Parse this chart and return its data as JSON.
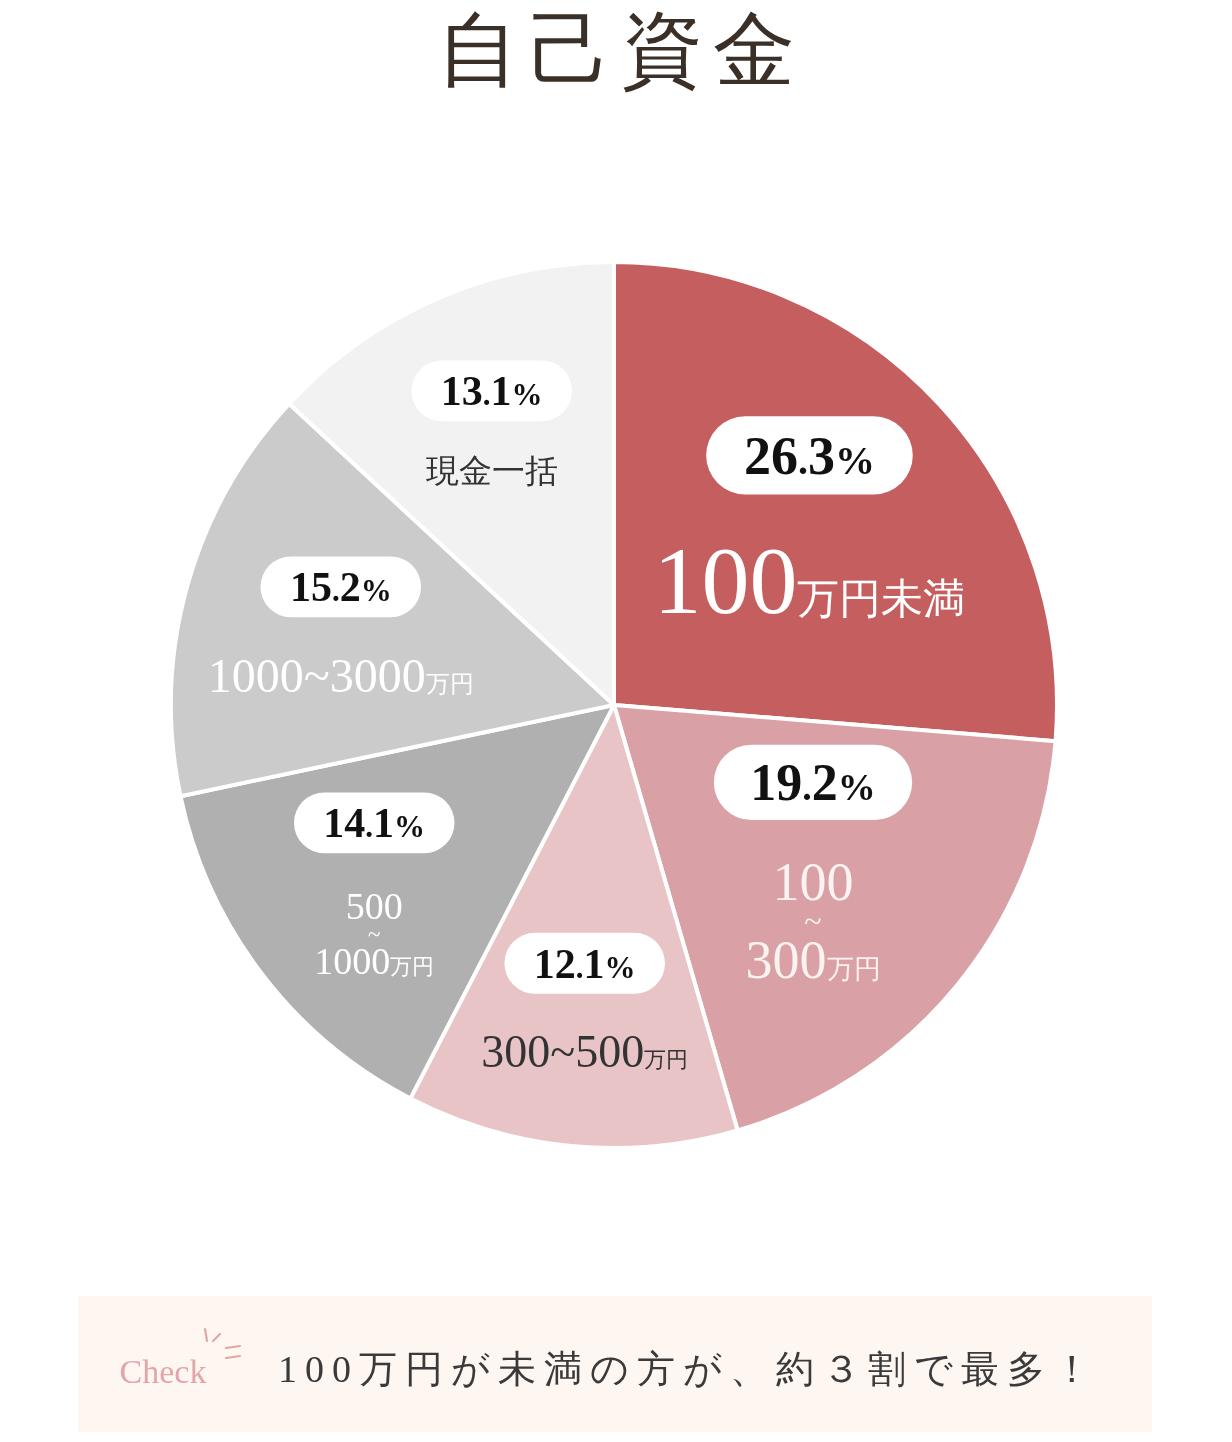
{
  "chart_data": {
    "type": "pie",
    "title": "自己資金",
    "categories": [
      "100万円未満",
      "100~300万円",
      "300~500万円",
      "500~1000万円",
      "1000~3000万円",
      "現金一括"
    ],
    "values": [
      26.3,
      19.2,
      12.1,
      14.1,
      15.2,
      13.1
    ],
    "colors": [
      "#c55e5f",
      "#d9a1a5",
      "#e8c4c6",
      "#b0b0b0",
      "#cbcbcb",
      "#f2f2f2"
    ],
    "value_labels": [
      "26.3%",
      "19.2%",
      "12.1%",
      "14.1%",
      "15.2%",
      "13.1%"
    ],
    "annotations": [
      "Check",
      "100万円が未満の方が、約３割で最多！"
    ]
  }
}
